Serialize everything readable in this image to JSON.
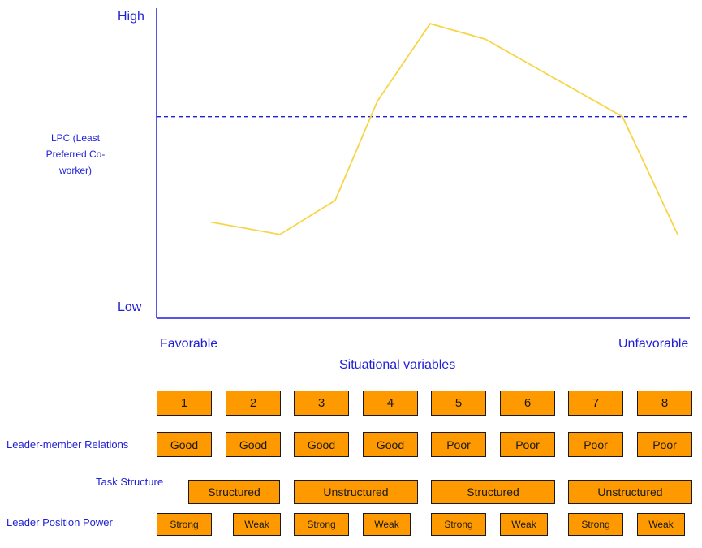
{
  "chart_data": {
    "type": "line",
    "ylabel_top": "High",
    "ylabel_bottom": "Low",
    "reference_line_label": [
      "LPC (Least",
      "Preferred Co-",
      "worker)"
    ],
    "xlabel_left": "Favorable",
    "xlabel_right": "Unfavorable",
    "xlabel": "Situational variables",
    "x": [
      1,
      2,
      3,
      4,
      5,
      6,
      7,
      8
    ],
    "values": [
      0.31,
      0.27,
      0.38,
      0.7,
      0.95,
      0.9,
      0.65,
      0.27
    ],
    "reference_value": 0.65,
    "ylim": [
      0,
      1
    ],
    "line_color": "#f7d548",
    "reference_color": "#1f1fd6",
    "axis_color": "#1f1fd6"
  },
  "table": {
    "situations": [
      "1",
      "2",
      "3",
      "4",
      "5",
      "6",
      "7",
      "8"
    ],
    "relations_label": "Leader-member Relations",
    "relations": [
      "Good",
      "Good",
      "Good",
      "Good",
      "Poor",
      "Poor",
      "Poor",
      "Poor"
    ],
    "task_label": "Task Structure",
    "task": [
      "Structured",
      "Unstructured",
      "Structured",
      "Unstructured"
    ],
    "power_label": "Leader Position Power",
    "power": [
      "Strong",
      "Weak",
      "Strong",
      "Weak",
      "Strong",
      "Weak",
      "Strong",
      "Weak"
    ],
    "box_color": "#ff9900"
  }
}
